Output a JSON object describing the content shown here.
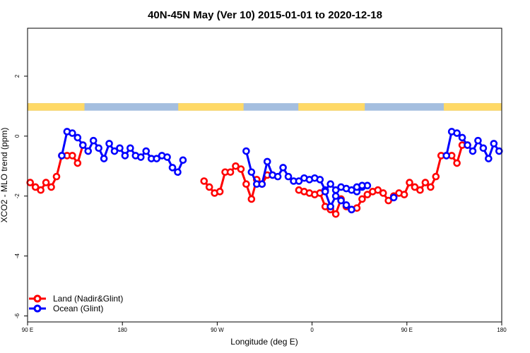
{
  "chart_data": {
    "type": "line",
    "title": "40N-45N May (Ver 10)   2015-01-01 to 2020-12-18",
    "xlabel": "Longitude (deg E)",
    "ylabel": "XCO2 - MLO trend (ppm)",
    "xlim": [
      90,
      540
    ],
    "ylim": [
      -6.2,
      3.6
    ],
    "grid": false,
    "legend_position": "bottom-left",
    "x_ticks": [
      {
        "value": 90,
        "label": "90 E"
      },
      {
        "value": 180,
        "label": "180"
      },
      {
        "value": 270,
        "label": "90 W"
      },
      {
        "value": 360,
        "label": "0"
      },
      {
        "value": 450,
        "label": "90 E"
      },
      {
        "value": 540,
        "label": "180"
      }
    ],
    "y_ticks": [
      {
        "value": 2,
        "label": "2"
      },
      {
        "value": 0,
        "label": "0"
      },
      {
        "value": -2,
        "label": "-2"
      },
      {
        "value": -4,
        "label": "-4"
      },
      {
        "value": -6,
        "label": "-6"
      }
    ],
    "land_ocean_bar": {
      "y_range": [
        0.85,
        1.1
      ],
      "land_color": "#FFD966",
      "ocean_color": "#A4BEDF",
      "land_segments": [
        [
          90,
          144
        ],
        [
          233,
          295
        ],
        [
          347,
          410
        ],
        [
          485,
          540
        ]
      ]
    },
    "series": [
      {
        "name": "Land (Nadir&Glint)",
        "color": "#FF0000",
        "segments": [
          {
            "x": [
              92.5,
              97.5,
              102.5,
              107.5,
              112.5,
              117.5,
              122.5,
              127.5,
              132.5,
              137.5,
              142.5
            ],
            "y": [
              -1.55,
              -1.7,
              -1.8,
              -1.55,
              -1.7,
              -1.35,
              -0.65,
              -0.65,
              -0.65,
              -0.9,
              -0.3
            ]
          },
          {
            "x": [
              257.5,
              262.5,
              267.5,
              272.5,
              277.5,
              282.5,
              287.5,
              292.5,
              297.5,
              302.5,
              307.5,
              312.5,
              317.5,
              322.5
            ],
            "y": [
              -1.5,
              -1.7,
              -1.9,
              -1.85,
              -1.2,
              -1.2,
              -1.0,
              -1.1,
              -1.6,
              -2.1,
              -1.45,
              -1.6,
              -1.3,
              -1.3
            ]
          },
          {
            "x": [
              347.5,
              352.5,
              357.5,
              362.5,
              367.5,
              372.5,
              377.5,
              382.5,
              387.5,
              392.5,
              397.5,
              402.5,
              407.5,
              412.5,
              417.5,
              422.5,
              427.5,
              432.5,
              437.5,
              442.5,
              447.5,
              452.5,
              457.5,
              462.5,
              467.5,
              472.5,
              477.5,
              482.5,
              487.5,
              492.5,
              497.5,
              502.5,
              507.5
            ],
            "y": [
              -1.8,
              -1.85,
              -1.9,
              -1.95,
              -1.9,
              -2.35,
              -2.45,
              -2.6,
              -2.1,
              -2.35,
              -2.45,
              -2.4,
              -2.1,
              -1.95,
              -1.85,
              -1.8,
              -1.9,
              -2.15,
              -2.0,
              -1.9,
              -1.95,
              -1.55,
              -1.7,
              -1.8,
              -1.55,
              -1.7,
              -1.35,
              -0.65,
              -0.65,
              -0.65,
              -0.9,
              -0.3,
              -0.3
            ]
          }
        ]
      },
      {
        "name": "Ocean (Glint)",
        "color": "#0000FF",
        "segments": [
          {
            "x": [
              122.5,
              127.5,
              132.5,
              137.5,
              142.5,
              147.5,
              152.5,
              157.5,
              162.5,
              167.5,
              172.5,
              177.5,
              182.5,
              187.5,
              192.5,
              197.5,
              202.5,
              207.5,
              212.5,
              217.5,
              222.5,
              227.5,
              232.5,
              237.5
            ],
            "y": [
              -0.65,
              0.15,
              0.1,
              -0.05,
              -0.3,
              -0.5,
              -0.15,
              -0.4,
              -0.75,
              -0.25,
              -0.5,
              -0.4,
              -0.65,
              -0.4,
              -0.65,
              -0.7,
              -0.5,
              -0.75,
              -0.75,
              -0.65,
              -0.7,
              -1.05,
              -1.2,
              -0.8
            ]
          },
          {
            "x": [
              297.5,
              302.5,
              307.5,
              312.5,
              317.5,
              322.5,
              327.5,
              332.5,
              337.5,
              342.5,
              347.5,
              352.5,
              357.5,
              362.5,
              367.5,
              372.5,
              377.5,
              382.5,
              387.5,
              392.5,
              397.5,
              402.5,
              407.5,
              412.5
            ],
            "y": [
              -0.5,
              -1.2,
              -1.6,
              -1.6,
              -0.85,
              -1.3,
              -1.35,
              -1.05,
              -1.35,
              -1.5,
              -1.5,
              -1.4,
              -1.45,
              -1.4,
              -1.45,
              -1.8,
              -1.6,
              -1.8,
              -1.7,
              -1.75,
              -1.8,
              -1.85,
              -1.7,
              -1.65
            ]
          },
          {
            "x": [
              372.5,
              377.5,
              382.5,
              387.5,
              392.5,
              397.5
            ],
            "y": [
              -1.85,
              -2.35,
              -2.0,
              -2.15,
              -2.3,
              -2.45
            ]
          },
          {
            "x": [
              402.5,
              407.5
            ],
            "y": [
              -1.7,
              -1.65
            ]
          },
          {
            "x": [
              437.5
            ],
            "y": [
              -2.05
            ]
          },
          {
            "x": [
              487.5,
              492.5,
              497.5,
              502.5,
              507.5,
              512.5,
              517.5,
              522.5,
              527.5,
              532.5,
              537.5
            ],
            "y": [
              -0.65,
              0.15,
              0.1,
              -0.05,
              -0.3,
              -0.5,
              -0.15,
              -0.4,
              -0.75,
              -0.25,
              -0.5
            ]
          }
        ]
      }
    ]
  },
  "legend": {
    "land_label": "Land (Nadir&Glint)",
    "ocean_label": "Ocean (Glint)"
  }
}
